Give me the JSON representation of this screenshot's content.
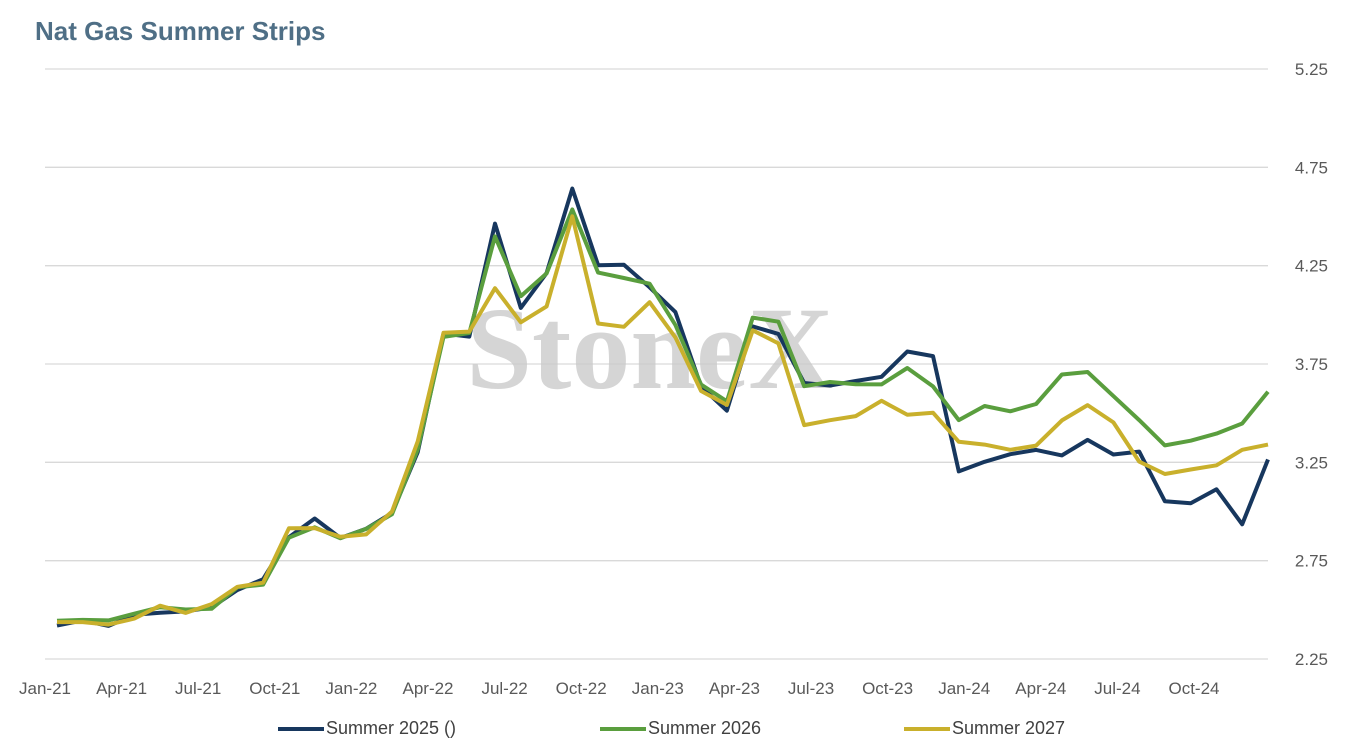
{
  "chart_data": {
    "type": "line",
    "title": "Nat Gas Summer Strips",
    "watermark": "StoneX",
    "x_tick_labels": [
      "Jan-21",
      "Apr-21",
      "Jul-21",
      "Oct-21",
      "Jan-22",
      "Apr-22",
      "Jul-22",
      "Oct-22",
      "Jan-23",
      "Apr-23",
      "Jul-23",
      "Oct-23",
      "Jan-24",
      "Apr-24",
      "Jul-24",
      "Oct-24"
    ],
    "y_tick_labels": [
      "5.25",
      "4.75",
      "4.25",
      "3.75",
      "3.25",
      "2.75",
      "2.25"
    ],
    "ylim": [
      2.25,
      5.25
    ],
    "grid": "horizontal",
    "legend_position": "bottom",
    "x": [
      "2021-01",
      "2021-02",
      "2021-03",
      "2021-04",
      "2021-05",
      "2021-06",
      "2021-07",
      "2021-08",
      "2021-09",
      "2021-10",
      "2021-11",
      "2021-12",
      "2022-01",
      "2022-02",
      "2022-03",
      "2022-04",
      "2022-05",
      "2022-06",
      "2022-07",
      "2022-08",
      "2022-09",
      "2022-10",
      "2022-11",
      "2022-12",
      "2023-01",
      "2023-02",
      "2023-03",
      "2023-04",
      "2023-05",
      "2023-06",
      "2023-07",
      "2023-08",
      "2023-09",
      "2023-10",
      "2023-11",
      "2023-12",
      "2024-01",
      "2024-02",
      "2024-03",
      "2024-04",
      "2024-05",
      "2024-06",
      "2024-07",
      "2024-08",
      "2024-09",
      "2024-10",
      "2024-11",
      "2024-12"
    ],
    "series": [
      {
        "name": "Summer 2025 ()",
        "color": "#17375e",
        "values": [
          2.42,
          2.44,
          2.43,
          2.46,
          2.5,
          2.48,
          2.52,
          2.6,
          2.65,
          2.88,
          2.95,
          2.88,
          2.9,
          3.0,
          3.3,
          3.9,
          3.9,
          4.45,
          4.05,
          4.2,
          4.65,
          4.25,
          4.25,
          4.15,
          4.0,
          3.65,
          3.5,
          3.95,
          3.9,
          3.65,
          3.65,
          3.65,
          3.7,
          3.8,
          3.8,
          3.2,
          3.25,
          3.3,
          3.3,
          3.3,
          3.35,
          3.3,
          3.3,
          3.05,
          3.05,
          3.1,
          2.95,
          3.25
        ]
      },
      {
        "name": "Summer 2026",
        "color": "#5a9e3e",
        "values": [
          2.43,
          2.46,
          2.44,
          2.48,
          2.52,
          2.49,
          2.52,
          2.6,
          2.64,
          2.86,
          2.92,
          2.87,
          2.9,
          3.0,
          3.3,
          3.9,
          3.9,
          4.4,
          4.1,
          4.2,
          4.55,
          4.2,
          4.2,
          4.15,
          3.95,
          3.65,
          3.55,
          4.0,
          3.95,
          3.65,
          3.65,
          3.65,
          3.65,
          3.72,
          3.65,
          3.45,
          3.55,
          3.5,
          3.55,
          3.7,
          3.7,
          3.6,
          3.45,
          3.35,
          3.35,
          3.4,
          3.45,
          3.6
        ]
      },
      {
        "name": "Summer 2027",
        "color": "#c9b02c",
        "values": [
          2.43,
          2.45,
          2.41,
          2.47,
          2.51,
          2.49,
          2.53,
          2.61,
          2.65,
          2.9,
          2.93,
          2.86,
          2.89,
          3.0,
          3.35,
          3.92,
          3.9,
          4.15,
          3.95,
          4.05,
          4.5,
          3.95,
          3.95,
          4.05,
          3.9,
          3.6,
          3.55,
          3.92,
          3.85,
          3.45,
          3.45,
          3.5,
          3.55,
          3.5,
          3.5,
          3.35,
          3.35,
          3.3,
          3.35,
          3.45,
          3.55,
          3.45,
          3.25,
          3.2,
          3.2,
          3.25,
          3.3,
          3.35
        ]
      }
    ]
  }
}
